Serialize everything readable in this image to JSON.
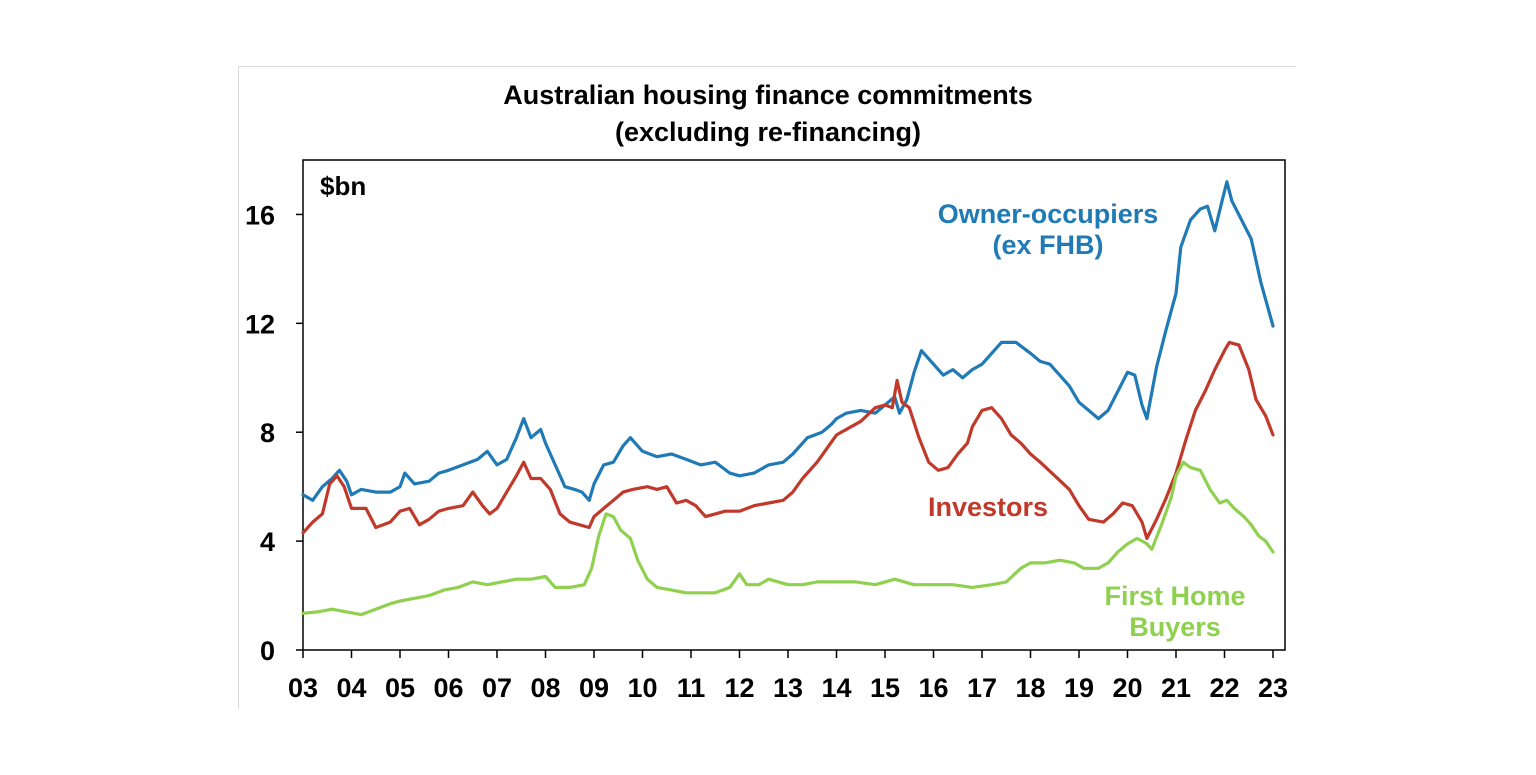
{
  "chart_data": {
    "type": "line",
    "title": "Australian housing finance commitments",
    "subtitle": "(excluding re-financing)",
    "unit_label": "$bn",
    "ylim": [
      0,
      18
    ],
    "xlim": [
      2003,
      2023.2
    ],
    "y_ticks": [
      0,
      4,
      8,
      12,
      16
    ],
    "x_ticks": [
      {
        "value": 2003,
        "label": "03"
      },
      {
        "value": 2004,
        "label": "04"
      },
      {
        "value": 2005,
        "label": "05"
      },
      {
        "value": 2006,
        "label": "06"
      },
      {
        "value": 2007,
        "label": "07"
      },
      {
        "value": 2008,
        "label": "08"
      },
      {
        "value": 2009,
        "label": "09"
      },
      {
        "value": 2010,
        "label": "10"
      },
      {
        "value": 2011,
        "label": "11"
      },
      {
        "value": 2012,
        "label": "12"
      },
      {
        "value": 2013,
        "label": "13"
      },
      {
        "value": 2014,
        "label": "14"
      },
      {
        "value": 2015,
        "label": "15"
      },
      {
        "value": 2016,
        "label": "16"
      },
      {
        "value": 2017,
        "label": "17"
      },
      {
        "value": 2018,
        "label": "18"
      },
      {
        "value": 2019,
        "label": "19"
      },
      {
        "value": 2020,
        "label": "20"
      },
      {
        "value": 2021,
        "label": "21"
      },
      {
        "value": 2022,
        "label": "22"
      },
      {
        "value": 2023,
        "label": "23"
      }
    ],
    "grid": false,
    "legend": "inline labels",
    "series": [
      {
        "name": "Owner-occupiers (ex FHB)",
        "label_lines": [
          "Owner-occupiers",
          "(ex FHB)"
        ],
        "color": "#1f7ab5",
        "points": [
          [
            2003.0,
            5.7
          ],
          [
            2003.2,
            5.5
          ],
          [
            2003.4,
            6.0
          ],
          [
            2003.6,
            6.3
          ],
          [
            2003.75,
            6.6
          ],
          [
            2003.9,
            6.2
          ],
          [
            2004.0,
            5.7
          ],
          [
            2004.2,
            5.9
          ],
          [
            2004.5,
            5.8
          ],
          [
            2004.8,
            5.8
          ],
          [
            2005.0,
            6.0
          ],
          [
            2005.1,
            6.5
          ],
          [
            2005.3,
            6.1
          ],
          [
            2005.6,
            6.2
          ],
          [
            2005.8,
            6.5
          ],
          [
            2006.0,
            6.6
          ],
          [
            2006.3,
            6.8
          ],
          [
            2006.6,
            7.0
          ],
          [
            2006.8,
            7.3
          ],
          [
            2007.0,
            6.8
          ],
          [
            2007.2,
            7.0
          ],
          [
            2007.4,
            7.8
          ],
          [
            2007.55,
            8.5
          ],
          [
            2007.7,
            7.8
          ],
          [
            2007.9,
            8.1
          ],
          [
            2008.0,
            7.6
          ],
          [
            2008.2,
            6.8
          ],
          [
            2008.4,
            6.0
          ],
          [
            2008.6,
            5.9
          ],
          [
            2008.75,
            5.8
          ],
          [
            2008.9,
            5.5
          ],
          [
            2009.0,
            6.1
          ],
          [
            2009.2,
            6.8
          ],
          [
            2009.4,
            6.9
          ],
          [
            2009.6,
            7.5
          ],
          [
            2009.75,
            7.8
          ],
          [
            2010.0,
            7.3
          ],
          [
            2010.3,
            7.1
          ],
          [
            2010.6,
            7.2
          ],
          [
            2010.9,
            7.0
          ],
          [
            2011.2,
            6.8
          ],
          [
            2011.5,
            6.9
          ],
          [
            2011.8,
            6.5
          ],
          [
            2012.0,
            6.4
          ],
          [
            2012.3,
            6.5
          ],
          [
            2012.6,
            6.8
          ],
          [
            2012.9,
            6.9
          ],
          [
            2013.1,
            7.2
          ],
          [
            2013.4,
            7.8
          ],
          [
            2013.7,
            8.0
          ],
          [
            2013.9,
            8.3
          ],
          [
            2014.0,
            8.5
          ],
          [
            2014.2,
            8.7
          ],
          [
            2014.5,
            8.8
          ],
          [
            2014.8,
            8.7
          ],
          [
            2015.0,
            9.0
          ],
          [
            2015.2,
            9.3
          ],
          [
            2015.3,
            8.7
          ],
          [
            2015.45,
            9.2
          ],
          [
            2015.6,
            10.2
          ],
          [
            2015.75,
            11.0
          ],
          [
            2016.0,
            10.5
          ],
          [
            2016.2,
            10.1
          ],
          [
            2016.4,
            10.3
          ],
          [
            2016.6,
            10.0
          ],
          [
            2016.8,
            10.3
          ],
          [
            2017.0,
            10.5
          ],
          [
            2017.2,
            10.9
          ],
          [
            2017.4,
            11.3
          ],
          [
            2017.7,
            11.3
          ],
          [
            2018.0,
            10.9
          ],
          [
            2018.2,
            10.6
          ],
          [
            2018.4,
            10.5
          ],
          [
            2018.6,
            10.1
          ],
          [
            2018.8,
            9.7
          ],
          [
            2019.0,
            9.1
          ],
          [
            2019.2,
            8.8
          ],
          [
            2019.4,
            8.5
          ],
          [
            2019.6,
            8.8
          ],
          [
            2019.8,
            9.5
          ],
          [
            2020.0,
            10.2
          ],
          [
            2020.15,
            10.1
          ],
          [
            2020.3,
            9.0
          ],
          [
            2020.4,
            8.5
          ],
          [
            2020.6,
            10.4
          ],
          [
            2020.8,
            11.8
          ],
          [
            2021.0,
            13.1
          ],
          [
            2021.1,
            14.8
          ],
          [
            2021.3,
            15.8
          ],
          [
            2021.5,
            16.2
          ],
          [
            2021.65,
            16.3
          ],
          [
            2021.8,
            15.4
          ],
          [
            2021.95,
            16.5
          ],
          [
            2022.05,
            17.2
          ],
          [
            2022.15,
            16.5
          ],
          [
            2022.35,
            15.8
          ],
          [
            2022.55,
            15.1
          ],
          [
            2022.75,
            13.5
          ],
          [
            2023.0,
            11.9
          ]
        ]
      },
      {
        "name": "Investors",
        "label_lines": [
          "Investors"
        ],
        "color": "#c0392b",
        "points": [
          [
            2003.0,
            4.3
          ],
          [
            2003.2,
            4.7
          ],
          [
            2003.4,
            5.0
          ],
          [
            2003.55,
            6.1
          ],
          [
            2003.7,
            6.4
          ],
          [
            2003.85,
            6.0
          ],
          [
            2004.0,
            5.2
          ],
          [
            2004.3,
            5.2
          ],
          [
            2004.5,
            4.5
          ],
          [
            2004.8,
            4.7
          ],
          [
            2005.0,
            5.1
          ],
          [
            2005.2,
            5.2
          ],
          [
            2005.4,
            4.6
          ],
          [
            2005.6,
            4.8
          ],
          [
            2005.8,
            5.1
          ],
          [
            2006.0,
            5.2
          ],
          [
            2006.3,
            5.3
          ],
          [
            2006.5,
            5.8
          ],
          [
            2006.7,
            5.3
          ],
          [
            2006.85,
            5.0
          ],
          [
            2007.0,
            5.2
          ],
          [
            2007.2,
            5.8
          ],
          [
            2007.4,
            6.4
          ],
          [
            2007.55,
            6.9
          ],
          [
            2007.7,
            6.3
          ],
          [
            2007.9,
            6.3
          ],
          [
            2008.1,
            5.9
          ],
          [
            2008.3,
            5.0
          ],
          [
            2008.5,
            4.7
          ],
          [
            2008.7,
            4.6
          ],
          [
            2008.9,
            4.5
          ],
          [
            2009.0,
            4.9
          ],
          [
            2009.2,
            5.2
          ],
          [
            2009.4,
            5.5
          ],
          [
            2009.6,
            5.8
          ],
          [
            2009.8,
            5.9
          ],
          [
            2010.1,
            6.0
          ],
          [
            2010.3,
            5.9
          ],
          [
            2010.5,
            6.0
          ],
          [
            2010.7,
            5.4
          ],
          [
            2010.9,
            5.5
          ],
          [
            2011.1,
            5.3
          ],
          [
            2011.3,
            4.9
          ],
          [
            2011.5,
            5.0
          ],
          [
            2011.7,
            5.1
          ],
          [
            2012.0,
            5.1
          ],
          [
            2012.3,
            5.3
          ],
          [
            2012.6,
            5.4
          ],
          [
            2012.9,
            5.5
          ],
          [
            2013.1,
            5.8
          ],
          [
            2013.3,
            6.3
          ],
          [
            2013.6,
            6.9
          ],
          [
            2013.8,
            7.4
          ],
          [
            2014.0,
            7.9
          ],
          [
            2014.3,
            8.2
          ],
          [
            2014.5,
            8.4
          ],
          [
            2014.8,
            8.9
          ],
          [
            2015.0,
            9.0
          ],
          [
            2015.15,
            8.9
          ],
          [
            2015.25,
            9.9
          ],
          [
            2015.35,
            9.1
          ],
          [
            2015.5,
            8.9
          ],
          [
            2015.7,
            7.8
          ],
          [
            2015.9,
            6.9
          ],
          [
            2016.1,
            6.6
          ],
          [
            2016.3,
            6.7
          ],
          [
            2016.5,
            7.2
          ],
          [
            2016.7,
            7.6
          ],
          [
            2016.8,
            8.2
          ],
          [
            2017.0,
            8.8
          ],
          [
            2017.2,
            8.9
          ],
          [
            2017.4,
            8.5
          ],
          [
            2017.6,
            7.9
          ],
          [
            2017.8,
            7.6
          ],
          [
            2018.0,
            7.2
          ],
          [
            2018.2,
            6.9
          ],
          [
            2018.5,
            6.4
          ],
          [
            2018.8,
            5.9
          ],
          [
            2019.0,
            5.3
          ],
          [
            2019.2,
            4.8
          ],
          [
            2019.5,
            4.7
          ],
          [
            2019.7,
            5.0
          ],
          [
            2019.9,
            5.4
          ],
          [
            2020.1,
            5.3
          ],
          [
            2020.3,
            4.7
          ],
          [
            2020.4,
            4.1
          ],
          [
            2020.6,
            4.8
          ],
          [
            2020.8,
            5.6
          ],
          [
            2021.0,
            6.5
          ],
          [
            2021.2,
            7.7
          ],
          [
            2021.4,
            8.8
          ],
          [
            2021.6,
            9.5
          ],
          [
            2021.8,
            10.3
          ],
          [
            2022.0,
            11.0
          ],
          [
            2022.1,
            11.3
          ],
          [
            2022.3,
            11.2
          ],
          [
            2022.5,
            10.3
          ],
          [
            2022.65,
            9.2
          ],
          [
            2022.85,
            8.6
          ],
          [
            2023.0,
            7.9
          ]
        ]
      },
      {
        "name": "First Home Buyers",
        "label_lines": [
          "First Home",
          "Buyers"
        ],
        "color": "#8fd14f",
        "points": [
          [
            2003.0,
            1.35
          ],
          [
            2003.3,
            1.4
          ],
          [
            2003.6,
            1.5
          ],
          [
            2003.9,
            1.4
          ],
          [
            2004.2,
            1.3
          ],
          [
            2004.5,
            1.5
          ],
          [
            2004.8,
            1.7
          ],
          [
            2005.0,
            1.8
          ],
          [
            2005.3,
            1.9
          ],
          [
            2005.6,
            2.0
          ],
          [
            2005.9,
            2.2
          ],
          [
            2006.2,
            2.3
          ],
          [
            2006.5,
            2.5
          ],
          [
            2006.8,
            2.4
          ],
          [
            2007.1,
            2.5
          ],
          [
            2007.4,
            2.6
          ],
          [
            2007.7,
            2.6
          ],
          [
            2008.0,
            2.7
          ],
          [
            2008.2,
            2.3
          ],
          [
            2008.5,
            2.3
          ],
          [
            2008.8,
            2.4
          ],
          [
            2008.95,
            3.0
          ],
          [
            2009.1,
            4.2
          ],
          [
            2009.25,
            5.0
          ],
          [
            2009.4,
            4.9
          ],
          [
            2009.55,
            4.4
          ],
          [
            2009.75,
            4.1
          ],
          [
            2009.9,
            3.3
          ],
          [
            2010.1,
            2.6
          ],
          [
            2010.3,
            2.3
          ],
          [
            2010.6,
            2.2
          ],
          [
            2010.9,
            2.1
          ],
          [
            2011.2,
            2.1
          ],
          [
            2011.5,
            2.1
          ],
          [
            2011.8,
            2.3
          ],
          [
            2012.0,
            2.8
          ],
          [
            2012.15,
            2.4
          ],
          [
            2012.4,
            2.4
          ],
          [
            2012.6,
            2.6
          ],
          [
            2012.8,
            2.5
          ],
          [
            2013.0,
            2.4
          ],
          [
            2013.3,
            2.4
          ],
          [
            2013.6,
            2.5
          ],
          [
            2014.0,
            2.5
          ],
          [
            2014.4,
            2.5
          ],
          [
            2014.8,
            2.4
          ],
          [
            2015.2,
            2.6
          ],
          [
            2015.6,
            2.4
          ],
          [
            2016.0,
            2.4
          ],
          [
            2016.4,
            2.4
          ],
          [
            2016.8,
            2.3
          ],
          [
            2017.2,
            2.4
          ],
          [
            2017.5,
            2.5
          ],
          [
            2017.8,
            3.0
          ],
          [
            2018.0,
            3.2
          ],
          [
            2018.3,
            3.2
          ],
          [
            2018.6,
            3.3
          ],
          [
            2018.9,
            3.2
          ],
          [
            2019.1,
            3.0
          ],
          [
            2019.4,
            3.0
          ],
          [
            2019.6,
            3.2
          ],
          [
            2019.8,
            3.6
          ],
          [
            2020.0,
            3.9
          ],
          [
            2020.2,
            4.1
          ],
          [
            2020.4,
            3.9
          ],
          [
            2020.5,
            3.7
          ],
          [
            2020.7,
            4.6
          ],
          [
            2020.9,
            5.6
          ],
          [
            2021.0,
            6.4
          ],
          [
            2021.15,
            6.9
          ],
          [
            2021.3,
            6.7
          ],
          [
            2021.5,
            6.6
          ],
          [
            2021.7,
            5.9
          ],
          [
            2021.9,
            5.4
          ],
          [
            2022.05,
            5.5
          ],
          [
            2022.2,
            5.2
          ],
          [
            2022.4,
            4.9
          ],
          [
            2022.55,
            4.6
          ],
          [
            2022.7,
            4.2
          ],
          [
            2022.85,
            4.0
          ],
          [
            2023.0,
            3.6
          ]
        ]
      }
    ]
  }
}
